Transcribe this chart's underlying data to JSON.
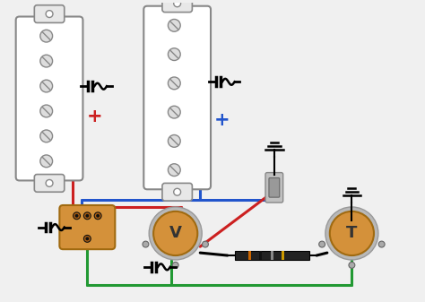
{
  "bg_color": "#f0f0f0",
  "pickup_color": "#f0f0f0",
  "pickup_border": "#888888",
  "pot_color": "#d4913a",
  "pot_border": "#a06a10",
  "pot_outer": "#b8b8b8",
  "switch_color": "#d4913a",
  "switch_border": "#a06a10",
  "wire_red": "#cc2020",
  "wire_blue": "#2255cc",
  "wire_green": "#229933",
  "wire_black": "#111111",
  "plus_red": "#cc2020",
  "plus_blue": "#2255cc",
  "label_V": "V",
  "label_T": "T",
  "screw_fill": "#dddddd",
  "screw_line": "#888888",
  "resistor_body": "#222222",
  "band1": "#cc5500",
  "band2": "#111111",
  "band3": "#cc9900",
  "band4": "#cc5500",
  "jack_color": "#cccccc",
  "jack_border": "#888888"
}
